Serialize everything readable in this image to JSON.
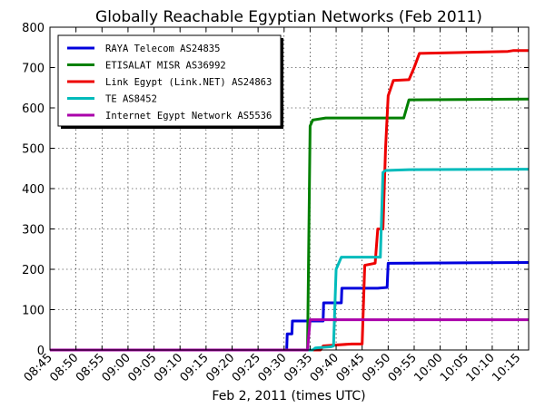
{
  "chart_data": {
    "type": "line",
    "title": "Globally Reachable Egyptian Networks (Feb 2011)",
    "xlabel": "Feb 2, 2011 (times UTC)",
    "ylabel": "",
    "x_ticks": [
      "08:45",
      "08:50",
      "08:55",
      "09:00",
      "09:05",
      "09:10",
      "09:15",
      "09:20",
      "09:25",
      "09:30",
      "09:35",
      "09:40",
      "09:45",
      "09:50",
      "09:55",
      "10:00",
      "10:05",
      "10:10",
      "10:15"
    ],
    "xlim": [
      "08:45",
      "10:17"
    ],
    "ylim": [
      0,
      800
    ],
    "y_ticks": [
      0,
      100,
      200,
      300,
      400,
      500,
      600,
      700,
      800
    ],
    "grid": true,
    "legend_position": "top-left",
    "series": [
      {
        "name": "RAYA Telecom AS24835",
        "color": "#0000dd",
        "points": [
          [
            "08:45",
            0
          ],
          [
            "09:30.5",
            0
          ],
          [
            "09:30.6",
            40
          ],
          [
            "09:31.5",
            40
          ],
          [
            "09:31.6",
            72
          ],
          [
            "09:37.5",
            72
          ],
          [
            "09:37.6",
            117
          ],
          [
            "09:41",
            117
          ],
          [
            "09:41.1",
            153
          ],
          [
            "09:48",
            153
          ],
          [
            "09:49.8",
            155
          ],
          [
            "09:50",
            215
          ],
          [
            "10:17",
            217
          ]
        ]
      },
      {
        "name": "ETISALAT MISR AS36992",
        "color": "#008000",
        "points": [
          [
            "08:45",
            0
          ],
          [
            "09:34.5",
            0
          ],
          [
            "09:35",
            555
          ],
          [
            "09:35.5",
            570
          ],
          [
            "09:38",
            575
          ],
          [
            "09:53",
            575
          ],
          [
            "09:54",
            620
          ],
          [
            "10:17",
            622
          ]
        ]
      },
      {
        "name": "Link Egypt (Link.NET) AS24863",
        "color": "#ee0000",
        "points": [
          [
            "08:45",
            0
          ],
          [
            "09:37",
            0
          ],
          [
            "09:37.5",
            10
          ],
          [
            "09:43",
            15
          ],
          [
            "09:45",
            15
          ],
          [
            "09:45.5",
            210
          ],
          [
            "09:47.5",
            215
          ],
          [
            "09:48",
            300
          ],
          [
            "09:49",
            300
          ],
          [
            "09:49.5",
            500
          ],
          [
            "09:50",
            630
          ],
          [
            "09:51",
            668
          ],
          [
            "09:54",
            670
          ],
          [
            "09:55",
            700
          ],
          [
            "09:56",
            735
          ],
          [
            "10:13",
            740
          ],
          [
            "10:14",
            742
          ],
          [
            "10:17",
            742
          ]
        ]
      },
      {
        "name": "TE AS8452",
        "color": "#00bbbb",
        "points": [
          [
            "08:45",
            0
          ],
          [
            "09:35.5",
            0
          ],
          [
            "09:36",
            5
          ],
          [
            "09:39",
            8
          ],
          [
            "09:39.5",
            10
          ],
          [
            "09:40",
            200
          ],
          [
            "09:41",
            230
          ],
          [
            "09:48.5",
            230
          ],
          [
            "09:49",
            440
          ],
          [
            "09:49.5",
            445
          ],
          [
            "09:54",
            447
          ],
          [
            "10:17",
            448
          ]
        ]
      },
      {
        "name": "Internet Egypt Network AS5536",
        "color": "#aa00aa",
        "points": [
          [
            "08:45",
            0
          ],
          [
            "09:34.5",
            0
          ],
          [
            "09:35",
            75
          ],
          [
            "10:17",
            75
          ]
        ]
      }
    ]
  }
}
